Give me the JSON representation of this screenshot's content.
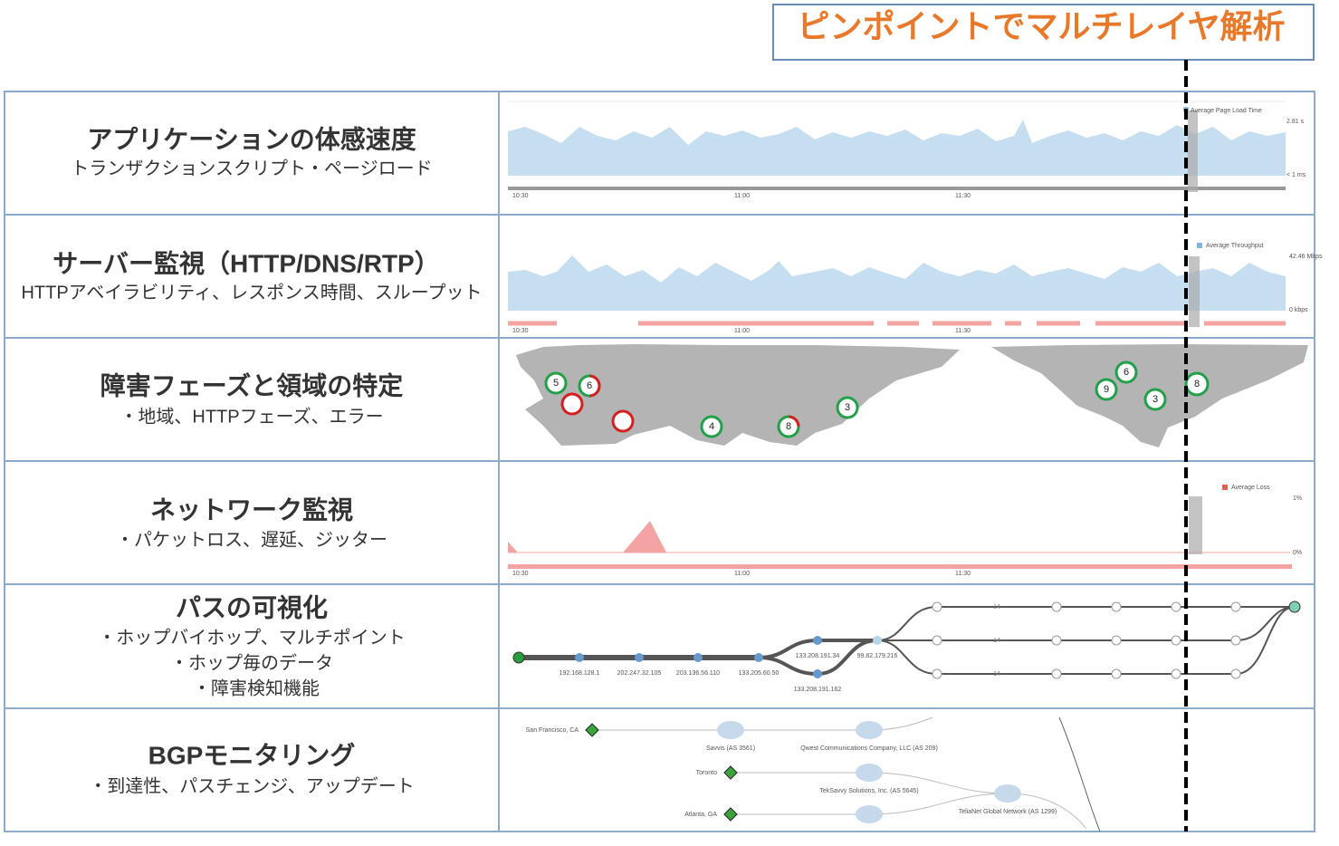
{
  "header": {
    "title": "ピンポイントでマルチレイヤ解析"
  },
  "rows": [
    {
      "title": "アプリケーションの体感速度",
      "lines": [
        "トランザクションスクリプト・ページロード"
      ],
      "panel": {
        "legend": "Average Page Load Time",
        "y_top": "2.81 s",
        "y_bottom": "< 1 ms",
        "times": [
          "10:30",
          "11:00",
          "11:30"
        ]
      }
    },
    {
      "title": "サーバー監視（HTTP/DNS/RTP）",
      "lines": [
        "HTTPアベイラビリティ、レスポンス時間、スループット"
      ],
      "panel": {
        "legend": "Average Throughput",
        "y_top": "42.46 Mbps",
        "y_bottom": "0 kbps",
        "times": [
          "10:30",
          "11:00",
          "11:30"
        ]
      }
    },
    {
      "title": "障害フェーズと領域の特定",
      "lines": [
        "・地域、HTTPフェーズ、エラー"
      ],
      "panel": {
        "markers": [
          "5",
          "6",
          "4",
          "8",
          "3",
          "6",
          "9",
          "3",
          "8"
        ]
      }
    },
    {
      "title": "ネットワーク監視",
      "lines": [
        "・パケットロス、遅延、ジッター"
      ],
      "panel": {
        "legend": "Average Loss",
        "y_top": "1%",
        "y_bottom": "0%",
        "times": [
          "10:30",
          "11:00",
          "11:30"
        ]
      }
    },
    {
      "title": "パスの可視化",
      "lines": [
        "・ホップバイホップ、マルチポイント",
        "・ホップ毎のデータ",
        "・障害検知機能"
      ],
      "panel": {
        "hops": [
          "192.168.128.1",
          "202.247.32.105",
          "203.136.56.110",
          "133.205.60.50",
          "133.208.191.34",
          "133.208.191.162",
          "99.82.179.216"
        ],
        "counts": [
          "14",
          "14",
          "14"
        ]
      }
    },
    {
      "title": "BGPモニタリング",
      "lines": [
        "・到達性、パスチェンジ、アップデート"
      ],
      "panel": {
        "origins": [
          "San Francisco, CA",
          "Toronto",
          "Atlanta, GA"
        ],
        "networks": [
          "Savvis (AS 3561)",
          "Qwest Communications Company, LLC (AS 209)",
          "TekSavvy Solutions, Inc. (AS 5645)",
          "TeliaNet Global Network (AS 1299)"
        ]
      }
    }
  ]
}
